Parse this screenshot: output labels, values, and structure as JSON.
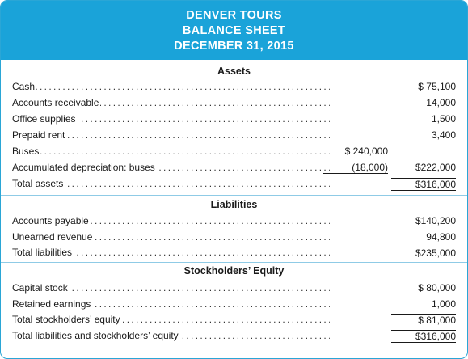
{
  "header": {
    "company": "DENVER TOURS",
    "statement": "BALANCE SHEET",
    "date": "DECEMBER 31, 2015"
  },
  "sections": {
    "assets": "Assets",
    "liabilities": "Liabilities",
    "equity": "Stockholders’ Equity"
  },
  "assets": [
    {
      "label": "Cash",
      "col1": "",
      "col2": "$ 75,100"
    },
    {
      "label": "Accounts receivable",
      "col1": "",
      "col2": "14,000"
    },
    {
      "label": "Office supplies",
      "col1": "",
      "col2": "1,500"
    },
    {
      "label": "Prepaid rent",
      "col1": "",
      "col2": "3,400"
    },
    {
      "label": "Buses",
      "col1": "$ 240,000",
      "col2": ""
    },
    {
      "label": "Accumulated depreciation: buses",
      "col1": "(18,000)",
      "col2": "$222,000"
    },
    {
      "label": "Total assets",
      "col1": "",
      "col2": "$316,000"
    }
  ],
  "liabilities": [
    {
      "label": "Accounts payable",
      "col1": "",
      "col2": "$140,200"
    },
    {
      "label": "Unearned revenue",
      "col1": "",
      "col2": "94,800"
    },
    {
      "label": "Total liabilities",
      "col1": "",
      "col2": "$235,000"
    }
  ],
  "equity": [
    {
      "label": "Capital stock",
      "col1": "",
      "col2": "$ 80,000"
    },
    {
      "label": "Retained earnings",
      "col1": "",
      "col2": "1,000"
    },
    {
      "label": "Total stockholders’ equity",
      "col1": "",
      "col2": "$ 81,000"
    },
    {
      "label": "Total liabilities and stockholders’ equity",
      "col1": "",
      "col2": "$316,000"
    }
  ]
}
